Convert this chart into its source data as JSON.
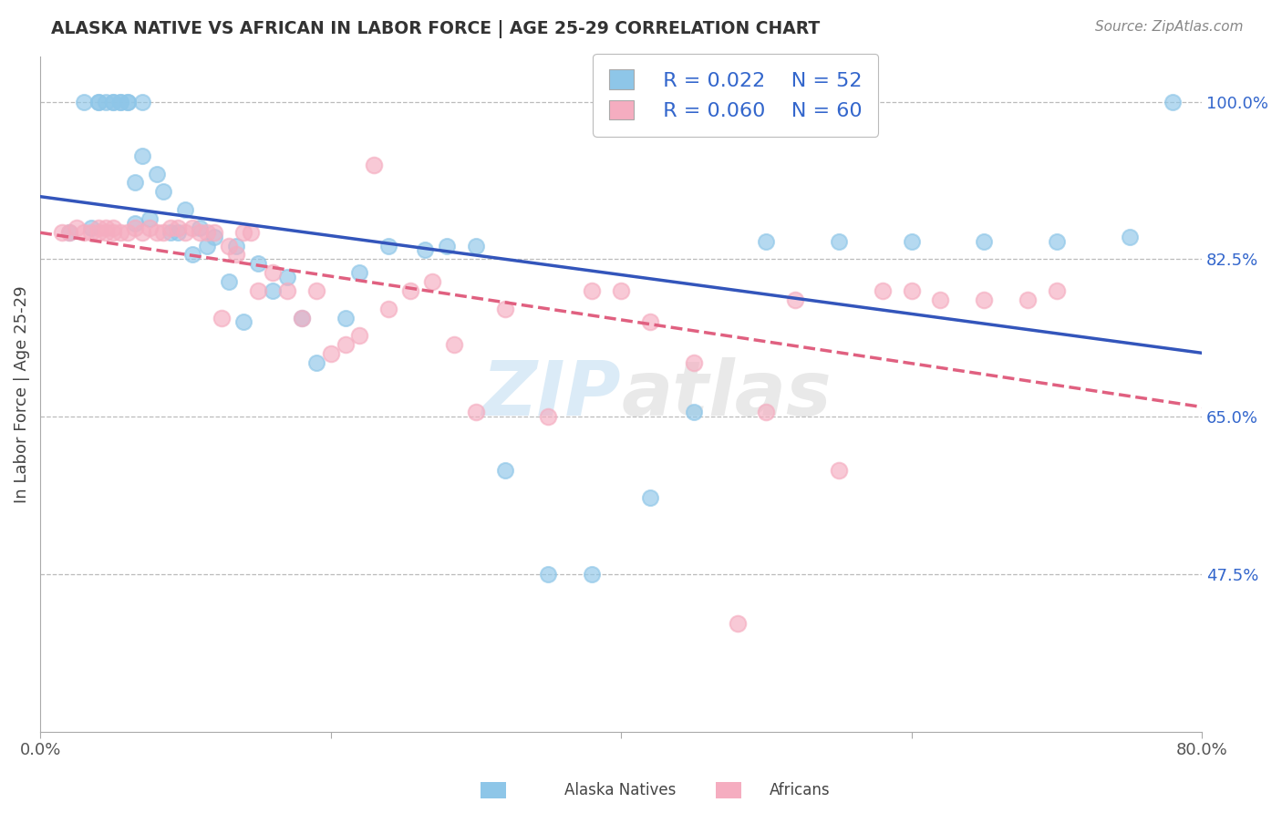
{
  "title": "ALASKA NATIVE VS AFRICAN IN LABOR FORCE | AGE 25-29 CORRELATION CHART",
  "source_text": "Source: ZipAtlas.com",
  "ylabel": "In Labor Force | Age 25-29",
  "xlim": [
    0.0,
    0.8
  ],
  "ylim": [
    0.3,
    1.05
  ],
  "watermark": "ZIPatlas",
  "legend_r_blue": "R = 0.022",
  "legend_n_blue": "N = 52",
  "legend_r_pink": "R = 0.060",
  "legend_n_pink": "N = 60",
  "legend_label_blue": "Alaska Natives",
  "legend_label_pink": "Africans",
  "blue_color": "#8ec6e8",
  "pink_color": "#f5adc0",
  "trendline_blue_color": "#3355bb",
  "trendline_pink_color": "#e06080",
  "background_color": "#ffffff",
  "grid_color": "#bbbbbb",
  "title_color": "#333333",
  "right_label_color": "#3366cc",
  "blue_scatter_x": [
    0.02,
    0.03,
    0.035,
    0.04,
    0.04,
    0.045,
    0.05,
    0.05,
    0.055,
    0.055,
    0.06,
    0.06,
    0.065,
    0.065,
    0.07,
    0.07,
    0.075,
    0.08,
    0.085,
    0.09,
    0.095,
    0.1,
    0.105,
    0.11,
    0.115,
    0.12,
    0.13,
    0.135,
    0.14,
    0.15,
    0.16,
    0.17,
    0.18,
    0.19,
    0.21,
    0.22,
    0.24,
    0.265,
    0.28,
    0.3,
    0.32,
    0.35,
    0.38,
    0.42,
    0.45,
    0.5,
    0.55,
    0.6,
    0.65,
    0.7,
    0.75,
    0.78
  ],
  "blue_scatter_y": [
    0.855,
    1.0,
    0.86,
    1.0,
    1.0,
    1.0,
    1.0,
    1.0,
    1.0,
    1.0,
    1.0,
    1.0,
    0.91,
    0.865,
    1.0,
    0.94,
    0.87,
    0.92,
    0.9,
    0.855,
    0.855,
    0.88,
    0.83,
    0.86,
    0.84,
    0.85,
    0.8,
    0.84,
    0.755,
    0.82,
    0.79,
    0.805,
    0.76,
    0.71,
    0.76,
    0.81,
    0.84,
    0.835,
    0.84,
    0.84,
    0.59,
    0.475,
    0.475,
    0.56,
    0.655,
    0.845,
    0.845,
    0.845,
    0.845,
    0.845,
    0.85,
    1.0
  ],
  "pink_scatter_x": [
    0.015,
    0.02,
    0.025,
    0.03,
    0.035,
    0.04,
    0.04,
    0.045,
    0.045,
    0.05,
    0.05,
    0.055,
    0.06,
    0.065,
    0.07,
    0.075,
    0.08,
    0.085,
    0.09,
    0.095,
    0.1,
    0.105,
    0.11,
    0.115,
    0.12,
    0.125,
    0.13,
    0.135,
    0.14,
    0.145,
    0.15,
    0.16,
    0.17,
    0.18,
    0.19,
    0.2,
    0.21,
    0.22,
    0.23,
    0.24,
    0.255,
    0.27,
    0.285,
    0.3,
    0.32,
    0.35,
    0.38,
    0.4,
    0.42,
    0.45,
    0.48,
    0.5,
    0.52,
    0.55,
    0.58,
    0.6,
    0.62,
    0.65,
    0.68,
    0.7
  ],
  "pink_scatter_y": [
    0.855,
    0.855,
    0.86,
    0.855,
    0.855,
    0.855,
    0.86,
    0.855,
    0.86,
    0.86,
    0.855,
    0.855,
    0.855,
    0.86,
    0.855,
    0.86,
    0.855,
    0.855,
    0.86,
    0.86,
    0.855,
    0.86,
    0.855,
    0.855,
    0.855,
    0.76,
    0.84,
    0.83,
    0.855,
    0.855,
    0.79,
    0.81,
    0.79,
    0.76,
    0.79,
    0.72,
    0.73,
    0.74,
    0.93,
    0.77,
    0.79,
    0.8,
    0.73,
    0.655,
    0.77,
    0.65,
    0.79,
    0.79,
    0.755,
    0.71,
    0.42,
    0.655,
    0.78,
    0.59,
    0.79,
    0.79,
    0.78,
    0.78,
    0.78,
    0.79
  ]
}
